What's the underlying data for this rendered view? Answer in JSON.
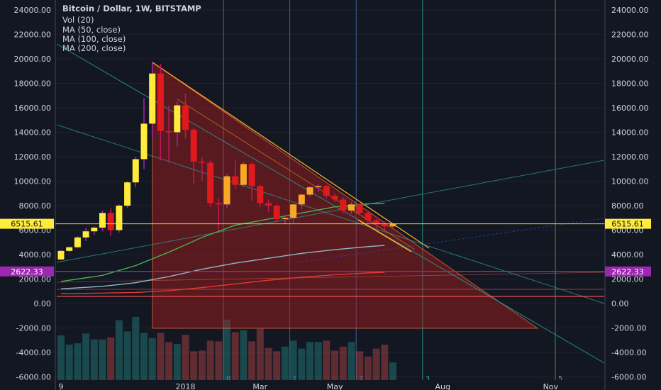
{
  "header": {
    "title": "Bitcoin / Dollar, 1W, BITSTAMP",
    "indicators": [
      "Vol (20)",
      "MA (50, close)",
      "MA (100, close)",
      "MA (200, close)"
    ]
  },
  "chart_data": {
    "type": "candlestick",
    "symbol": "Bitcoin / Dollar",
    "interval": "1W",
    "exchange": "BITSTAMP",
    "ylim": [
      -6000,
      24000
    ],
    "y_ticks": [
      24000,
      22000,
      20000,
      18000,
      16000,
      14000,
      12000,
      10000,
      8000,
      6000,
      4000,
      2000,
      0,
      -2000,
      -4000,
      -6000
    ],
    "y_tick_labels": [
      "24000.00",
      "22000.00",
      "20000.00",
      "18000.00",
      "16000.00",
      "14000.00",
      "12000.00",
      "10000.00",
      "8000.00",
      "6000.00",
      "4000.00",
      "2000.00",
      "0.00",
      "-2000.00",
      "-4000.00",
      "-6000.00"
    ],
    "x_labels": [
      {
        "label": "9",
        "week": 1
      },
      {
        "label": "2018",
        "week": 16
      },
      {
        "label": "Mar",
        "week": 25
      },
      {
        "label": "May",
        "week": 34
      },
      {
        "label": "Aug",
        "week": 47
      },
      {
        "label": "Nov",
        "week": 60
      }
    ],
    "price_labels": [
      {
        "value": 6515.61,
        "text": "6515.61",
        "color": "#ffeb3b"
      },
      {
        "value": 2622.33,
        "text": "2622.33",
        "color": "#9c27b0"
      }
    ],
    "vertical_markers": [
      {
        "label": "0",
        "week": 21,
        "color": "#787b86"
      },
      {
        "label": "1",
        "week": 29,
        "color": "#4a6fa5"
      },
      {
        "label": "2",
        "week": 37,
        "color": "#4a6fa5"
      },
      {
        "label": "3",
        "week": 45,
        "color": "#26a69a"
      },
      {
        "label": "5",
        "week": 61,
        "color": "#4caf50"
      }
    ],
    "candles": [
      {
        "o": 3600,
        "h": 4350,
        "l": 3550,
        "c": 4300
      },
      {
        "o": 4300,
        "h": 4650,
        "l": 4200,
        "c": 4600
      },
      {
        "o": 4600,
        "h": 5500,
        "l": 4500,
        "c": 5400
      },
      {
        "o": 5400,
        "h": 6200,
        "l": 5100,
        "c": 5900
      },
      {
        "o": 5900,
        "h": 6300,
        "l": 5600,
        "c": 6200
      },
      {
        "o": 6200,
        "h": 7600,
        "l": 5900,
        "c": 7400
      },
      {
        "o": 7400,
        "h": 7800,
        "l": 5500,
        "c": 6000
      },
      {
        "o": 6000,
        "h": 8100,
        "l": 5800,
        "c": 8000
      },
      {
        "o": 8000,
        "h": 10000,
        "l": 7800,
        "c": 9900
      },
      {
        "o": 9900,
        "h": 12000,
        "l": 9500,
        "c": 11800
      },
      {
        "o": 11800,
        "h": 16800,
        "l": 11000,
        "c": 14700
      },
      {
        "o": 14700,
        "h": 19700,
        "l": 13500,
        "c": 18800
      },
      {
        "o": 18800,
        "h": 19600,
        "l": 11700,
        "c": 14100
      },
      {
        "o": 14100,
        "h": 16200,
        "l": 11500,
        "c": 14000
      },
      {
        "o": 14000,
        "h": 16500,
        "l": 12800,
        "c": 16200
      },
      {
        "o": 16200,
        "h": 17200,
        "l": 13500,
        "c": 14200
      },
      {
        "o": 14200,
        "h": 14400,
        "l": 9800,
        "c": 11600
      },
      {
        "o": 11600,
        "h": 11900,
        "l": 10000,
        "c": 11500
      },
      {
        "o": 11500,
        "h": 11700,
        "l": 7900,
        "c": 8200
      },
      {
        "o": 8200,
        "h": 8600,
        "l": 6000,
        "c": 8100
      },
      {
        "o": 8100,
        "h": 10600,
        "l": 7800,
        "c": 10400
      },
      {
        "o": 10400,
        "h": 11700,
        "l": 9400,
        "c": 9700
      },
      {
        "o": 9700,
        "h": 11600,
        "l": 9500,
        "c": 11400
      },
      {
        "o": 11400,
        "h": 11500,
        "l": 8400,
        "c": 9600
      },
      {
        "o": 9600,
        "h": 9700,
        "l": 7900,
        "c": 8200
      },
      {
        "o": 8200,
        "h": 8500,
        "l": 7500,
        "c": 8000
      },
      {
        "o": 8000,
        "h": 8100,
        "l": 6700,
        "c": 6900
      },
      {
        "o": 6900,
        "h": 7200,
        "l": 6500,
        "c": 7000
      },
      {
        "o": 7000,
        "h": 8200,
        "l": 6600,
        "c": 8100
      },
      {
        "o": 8100,
        "h": 9000,
        "l": 7700,
        "c": 8900
      },
      {
        "o": 8900,
        "h": 9600,
        "l": 8700,
        "c": 9500
      },
      {
        "o": 9500,
        "h": 9800,
        "l": 9100,
        "c": 9600
      },
      {
        "o": 9600,
        "h": 9700,
        "l": 8600,
        "c": 8800
      },
      {
        "o": 8800,
        "h": 9000,
        "l": 8300,
        "c": 8500
      },
      {
        "o": 8500,
        "h": 8700,
        "l": 7400,
        "c": 7600
      },
      {
        "o": 7600,
        "h": 8300,
        "l": 7300,
        "c": 8100
      },
      {
        "o": 8100,
        "h": 8200,
        "l": 7200,
        "c": 7400
      },
      {
        "o": 7400,
        "h": 7500,
        "l": 6600,
        "c": 6800
      },
      {
        "o": 6800,
        "h": 6900,
        "l": 6100,
        "c": 6500
      },
      {
        "o": 6500,
        "h": 6700,
        "l": 6000,
        "c": 6300
      },
      {
        "o": 6300,
        "h": 6600,
        "l": 6200,
        "c": 6516
      }
    ],
    "volume_bars": [
      72,
      58,
      60,
      75,
      66,
      66,
      69,
      95,
      78,
      100,
      76,
      68,
      76,
      62,
      59,
      73,
      48,
      49,
      64,
      63,
      96,
      77,
      80,
      63,
      82,
      53,
      48,
      55,
      64,
      52,
      62,
      62,
      64,
      49,
      55,
      62,
      48,
      40,
      52,
      58,
      31
    ],
    "moving_averages": [
      {
        "name": "MA (50, close)",
        "color": "#4caf50",
        "points": [
          [
            1,
            1800
          ],
          [
            6,
            2300
          ],
          [
            10,
            3100
          ],
          [
            14,
            4200
          ],
          [
            18,
            5400
          ],
          [
            22,
            6400
          ],
          [
            26,
            6900
          ],
          [
            30,
            7400
          ],
          [
            34,
            7900
          ],
          [
            38,
            8150
          ],
          [
            40,
            8200
          ]
        ]
      },
      {
        "name": "MA (100, close)",
        "color": "#8fb8c8",
        "points": [
          [
            1,
            1200
          ],
          [
            6,
            1400
          ],
          [
            10,
            1700
          ],
          [
            14,
            2200
          ],
          [
            18,
            2800
          ],
          [
            22,
            3300
          ],
          [
            26,
            3700
          ],
          [
            30,
            4100
          ],
          [
            34,
            4400
          ],
          [
            38,
            4650
          ],
          [
            40,
            4750
          ]
        ]
      },
      {
        "name": "MA (200, close)",
        "color": "#e53935",
        "points": [
          [
            1,
            800
          ],
          [
            6,
            850
          ],
          [
            10,
            900
          ],
          [
            14,
            1050
          ],
          [
            18,
            1300
          ],
          [
            22,
            1600
          ],
          [
            26,
            1900
          ],
          [
            30,
            2150
          ],
          [
            34,
            2350
          ],
          [
            38,
            2500
          ],
          [
            40,
            2550
          ]
        ]
      }
    ]
  }
}
